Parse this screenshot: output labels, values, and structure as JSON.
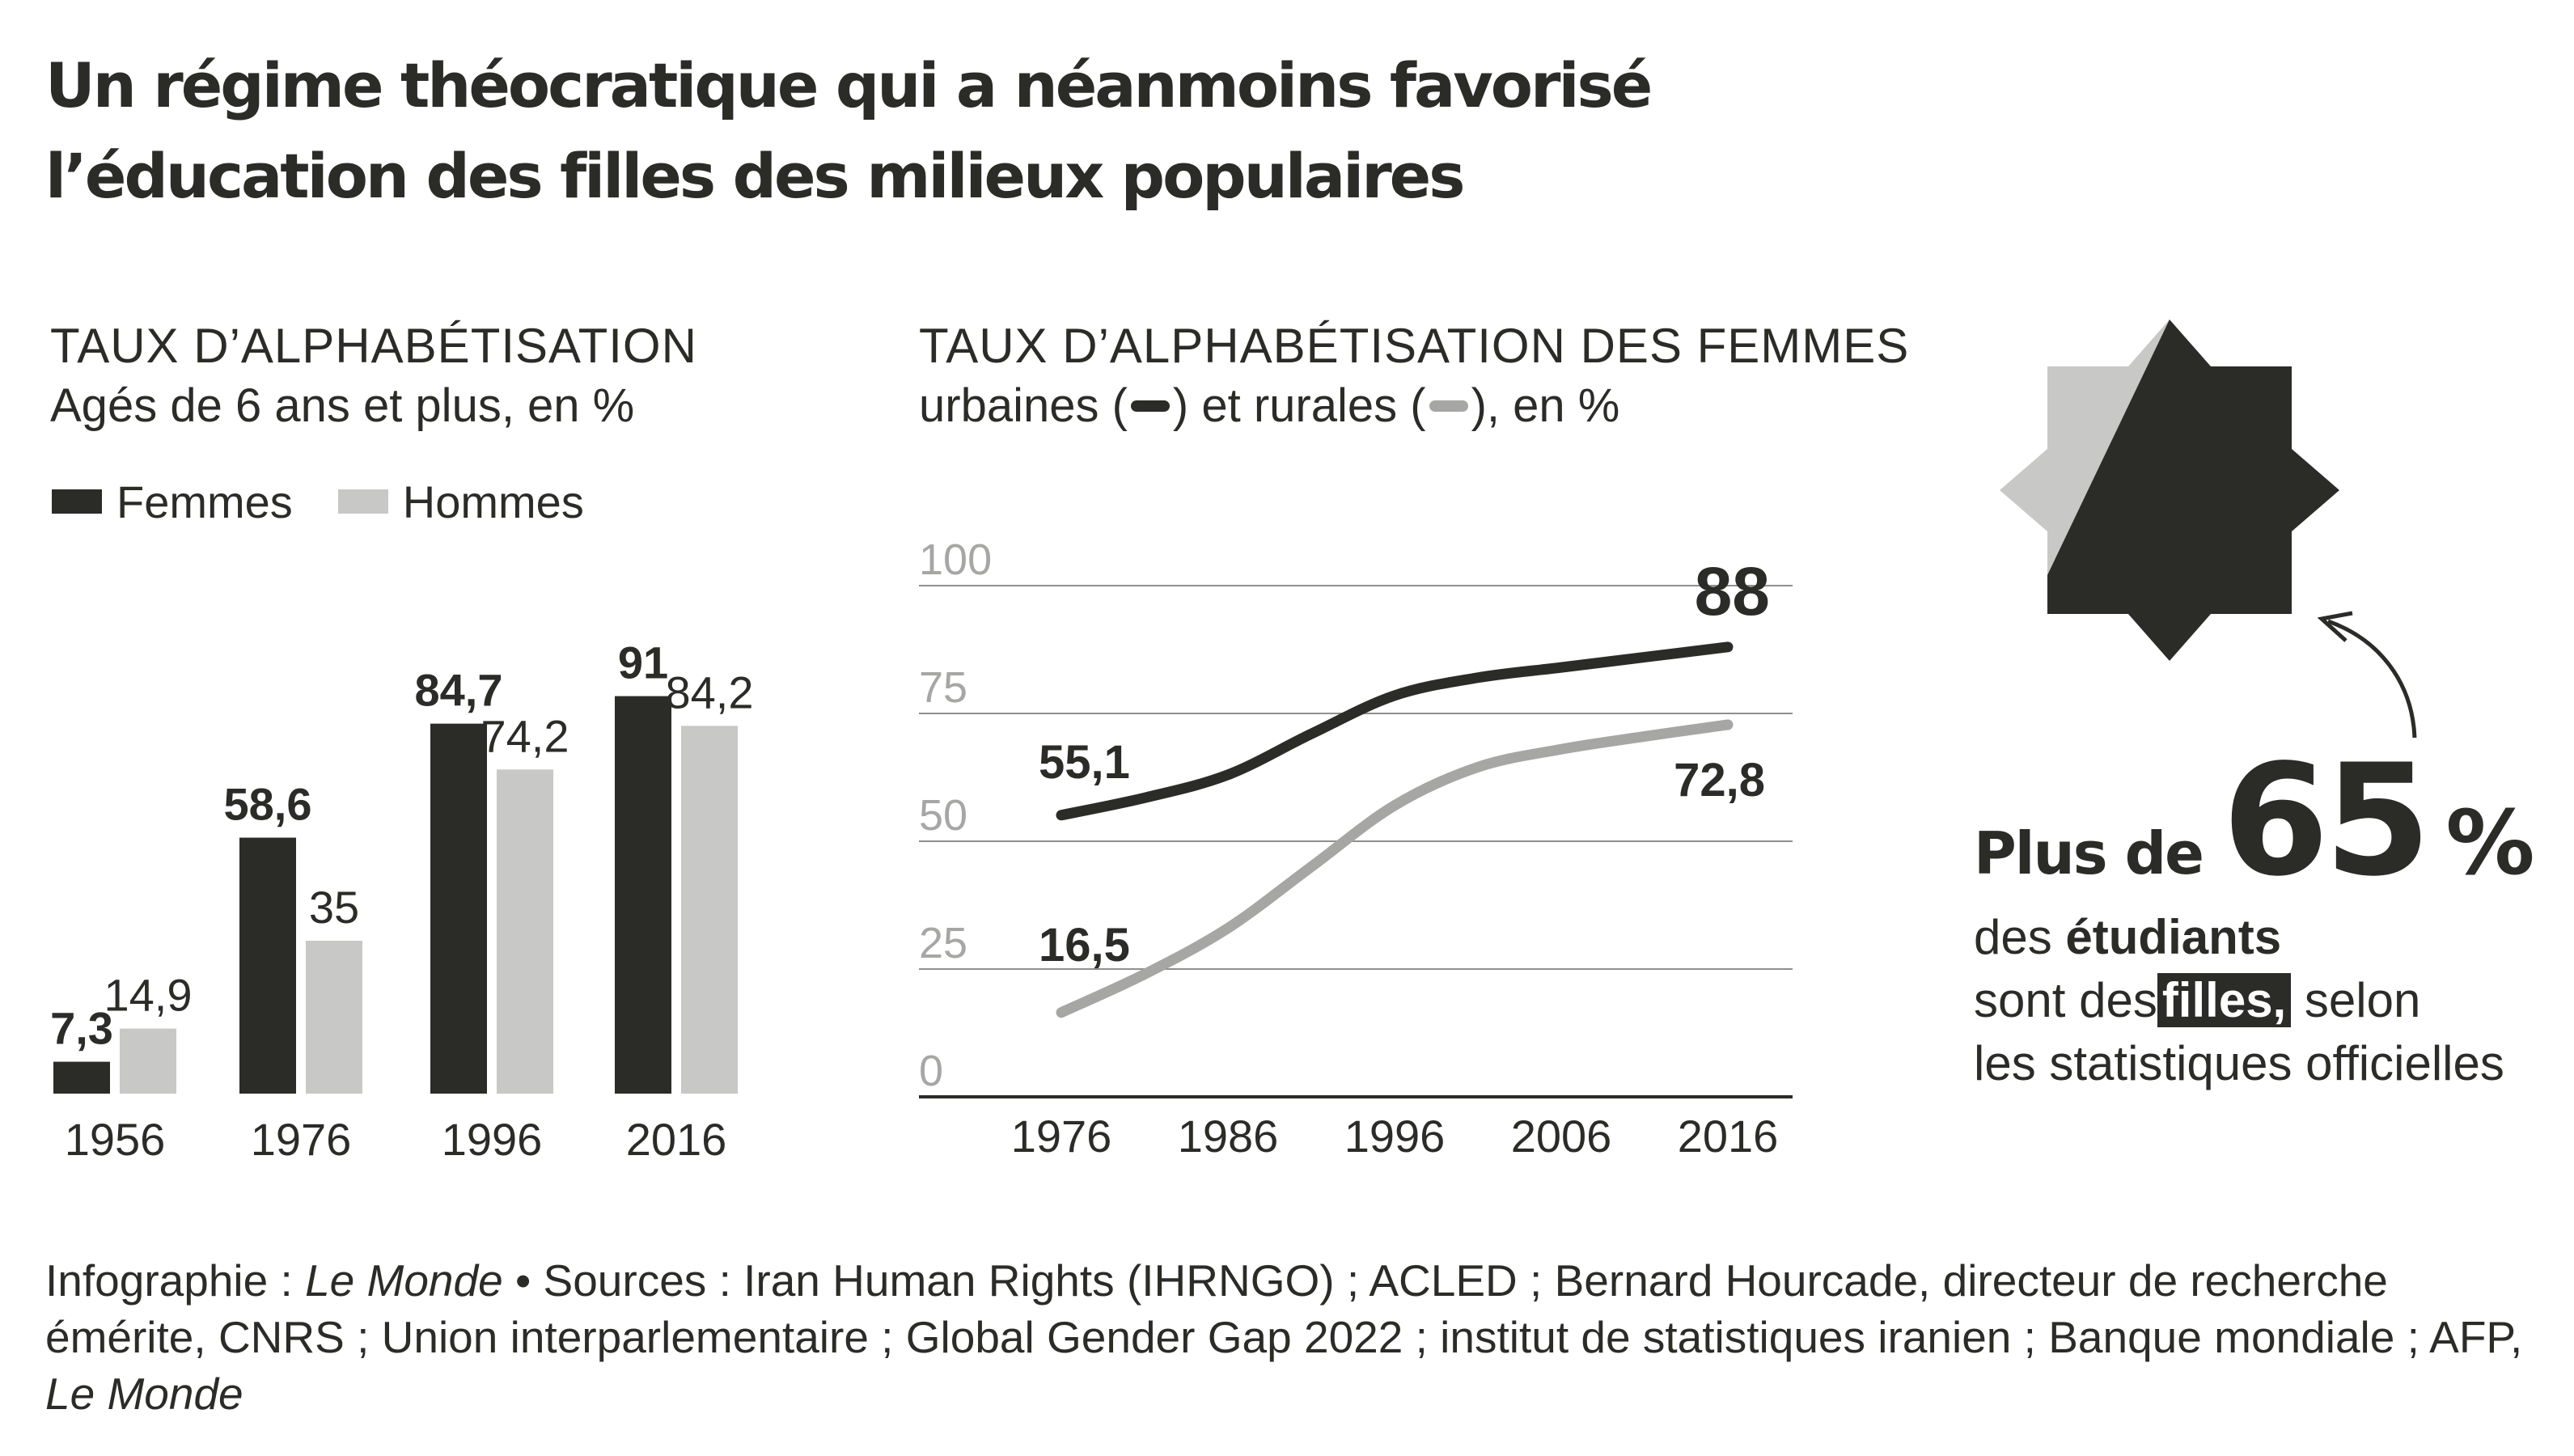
{
  "title": {
    "line1": "Un régime théocratique qui a néanmoins favorisé",
    "line2": "l’éducation des filles des milieux populaires"
  },
  "colors": {
    "dark": "#2b2b28",
    "light": "#c8c8c6",
    "grid": "#cfcfcf",
    "axis_label": "#a6a6a4"
  },
  "left_chart": {
    "title": "TAUX D’ALPHABÉTISATION",
    "subtitle": "Agés de 6 ans et plus, en %",
    "legend": {
      "femmes": "Femmes",
      "hommes": "Hommes"
    }
  },
  "right_chart": {
    "title": "TAUX D’ALPHABÉTISATION DES FEMMES",
    "subtitle_pre": "urbaines (",
    "subtitle_mid": ") et rurales (",
    "subtitle_post": "), en %"
  },
  "callout": {
    "prefix": "Plus de",
    "number": "65",
    "percent": "%",
    "line2_pre": "des ",
    "line2_bold": "étudiants",
    "line3_pre": "sont des",
    "line3_highlight": "filles,",
    "line3_post": " selon",
    "line4": "les statistiques officielles"
  },
  "source": {
    "p1": "Infographie : ",
    "p2": "Le Monde",
    "p3": " • Sources : Iran Human Rights (IHRNGO) ; ACLED ; Bernard Hourcade, directeur de recherche émérite, CNRS ; Union interparlementaire ; Global Gender Gap 2022 ; institut de statistiques iranien ; Banque mondiale ; AFP, ",
    "p4": "Le Monde"
  },
  "chart_data": [
    {
      "type": "bar",
      "title": "TAUX D’ALPHABÉTISATION",
      "subtitle": "Agés de 6 ans et plus, en %",
      "categories": [
        "1956",
        "1976",
        "1996",
        "2016"
      ],
      "series": [
        {
          "name": "Femmes",
          "values": [
            7.3,
            58.6,
            84.7,
            91
          ],
          "labels": [
            "7,3",
            "58,6",
            "84,7",
            "91"
          ]
        },
        {
          "name": "Hommes",
          "values": [
            14.9,
            35,
            74.2,
            84.2
          ],
          "labels": [
            "14,9",
            "35",
            "74,2",
            "84,2"
          ]
        }
      ],
      "ylim": [
        0,
        100
      ],
      "legend": "top-left",
      "grid": false
    },
    {
      "type": "line",
      "title": "TAUX D’ALPHABÉTISATION DES FEMMES",
      "subtitle": "urbaines ( ) et rurales ( ), en %",
      "x_ticks": [
        "1976",
        "1986",
        "1996",
        "2006",
        "2016"
      ],
      "y_ticks": [
        "0",
        "25",
        "50",
        "75",
        "100"
      ],
      "ylim": [
        0,
        100
      ],
      "xlim": [
        1976,
        2016
      ],
      "grid": true,
      "series": [
        {
          "name": "urbaines",
          "color": "#2b2b28",
          "points": [
            [
              1976,
              55.1
            ],
            [
              1981,
              58.5
            ],
            [
              1986,
              63
            ],
            [
              1991,
              71
            ],
            [
              1996,
              78.5
            ],
            [
              2001,
              82
            ],
            [
              2006,
              84
            ],
            [
              2011,
              86
            ],
            [
              2016,
              88
            ]
          ],
          "start_label": "55,1",
          "end_label": "88"
        },
        {
          "name": "rurales",
          "color": "#a6a6a4",
          "points": [
            [
              1976,
              16.5
            ],
            [
              1981,
              24
            ],
            [
              1986,
              33
            ],
            [
              1991,
              45
            ],
            [
              1996,
              57
            ],
            [
              2001,
              64.5
            ],
            [
              2006,
              68
            ],
            [
              2011,
              70.5
            ],
            [
              2016,
              72.8
            ]
          ],
          "start_label": "16,5",
          "end_label": "72,8"
        }
      ]
    }
  ]
}
